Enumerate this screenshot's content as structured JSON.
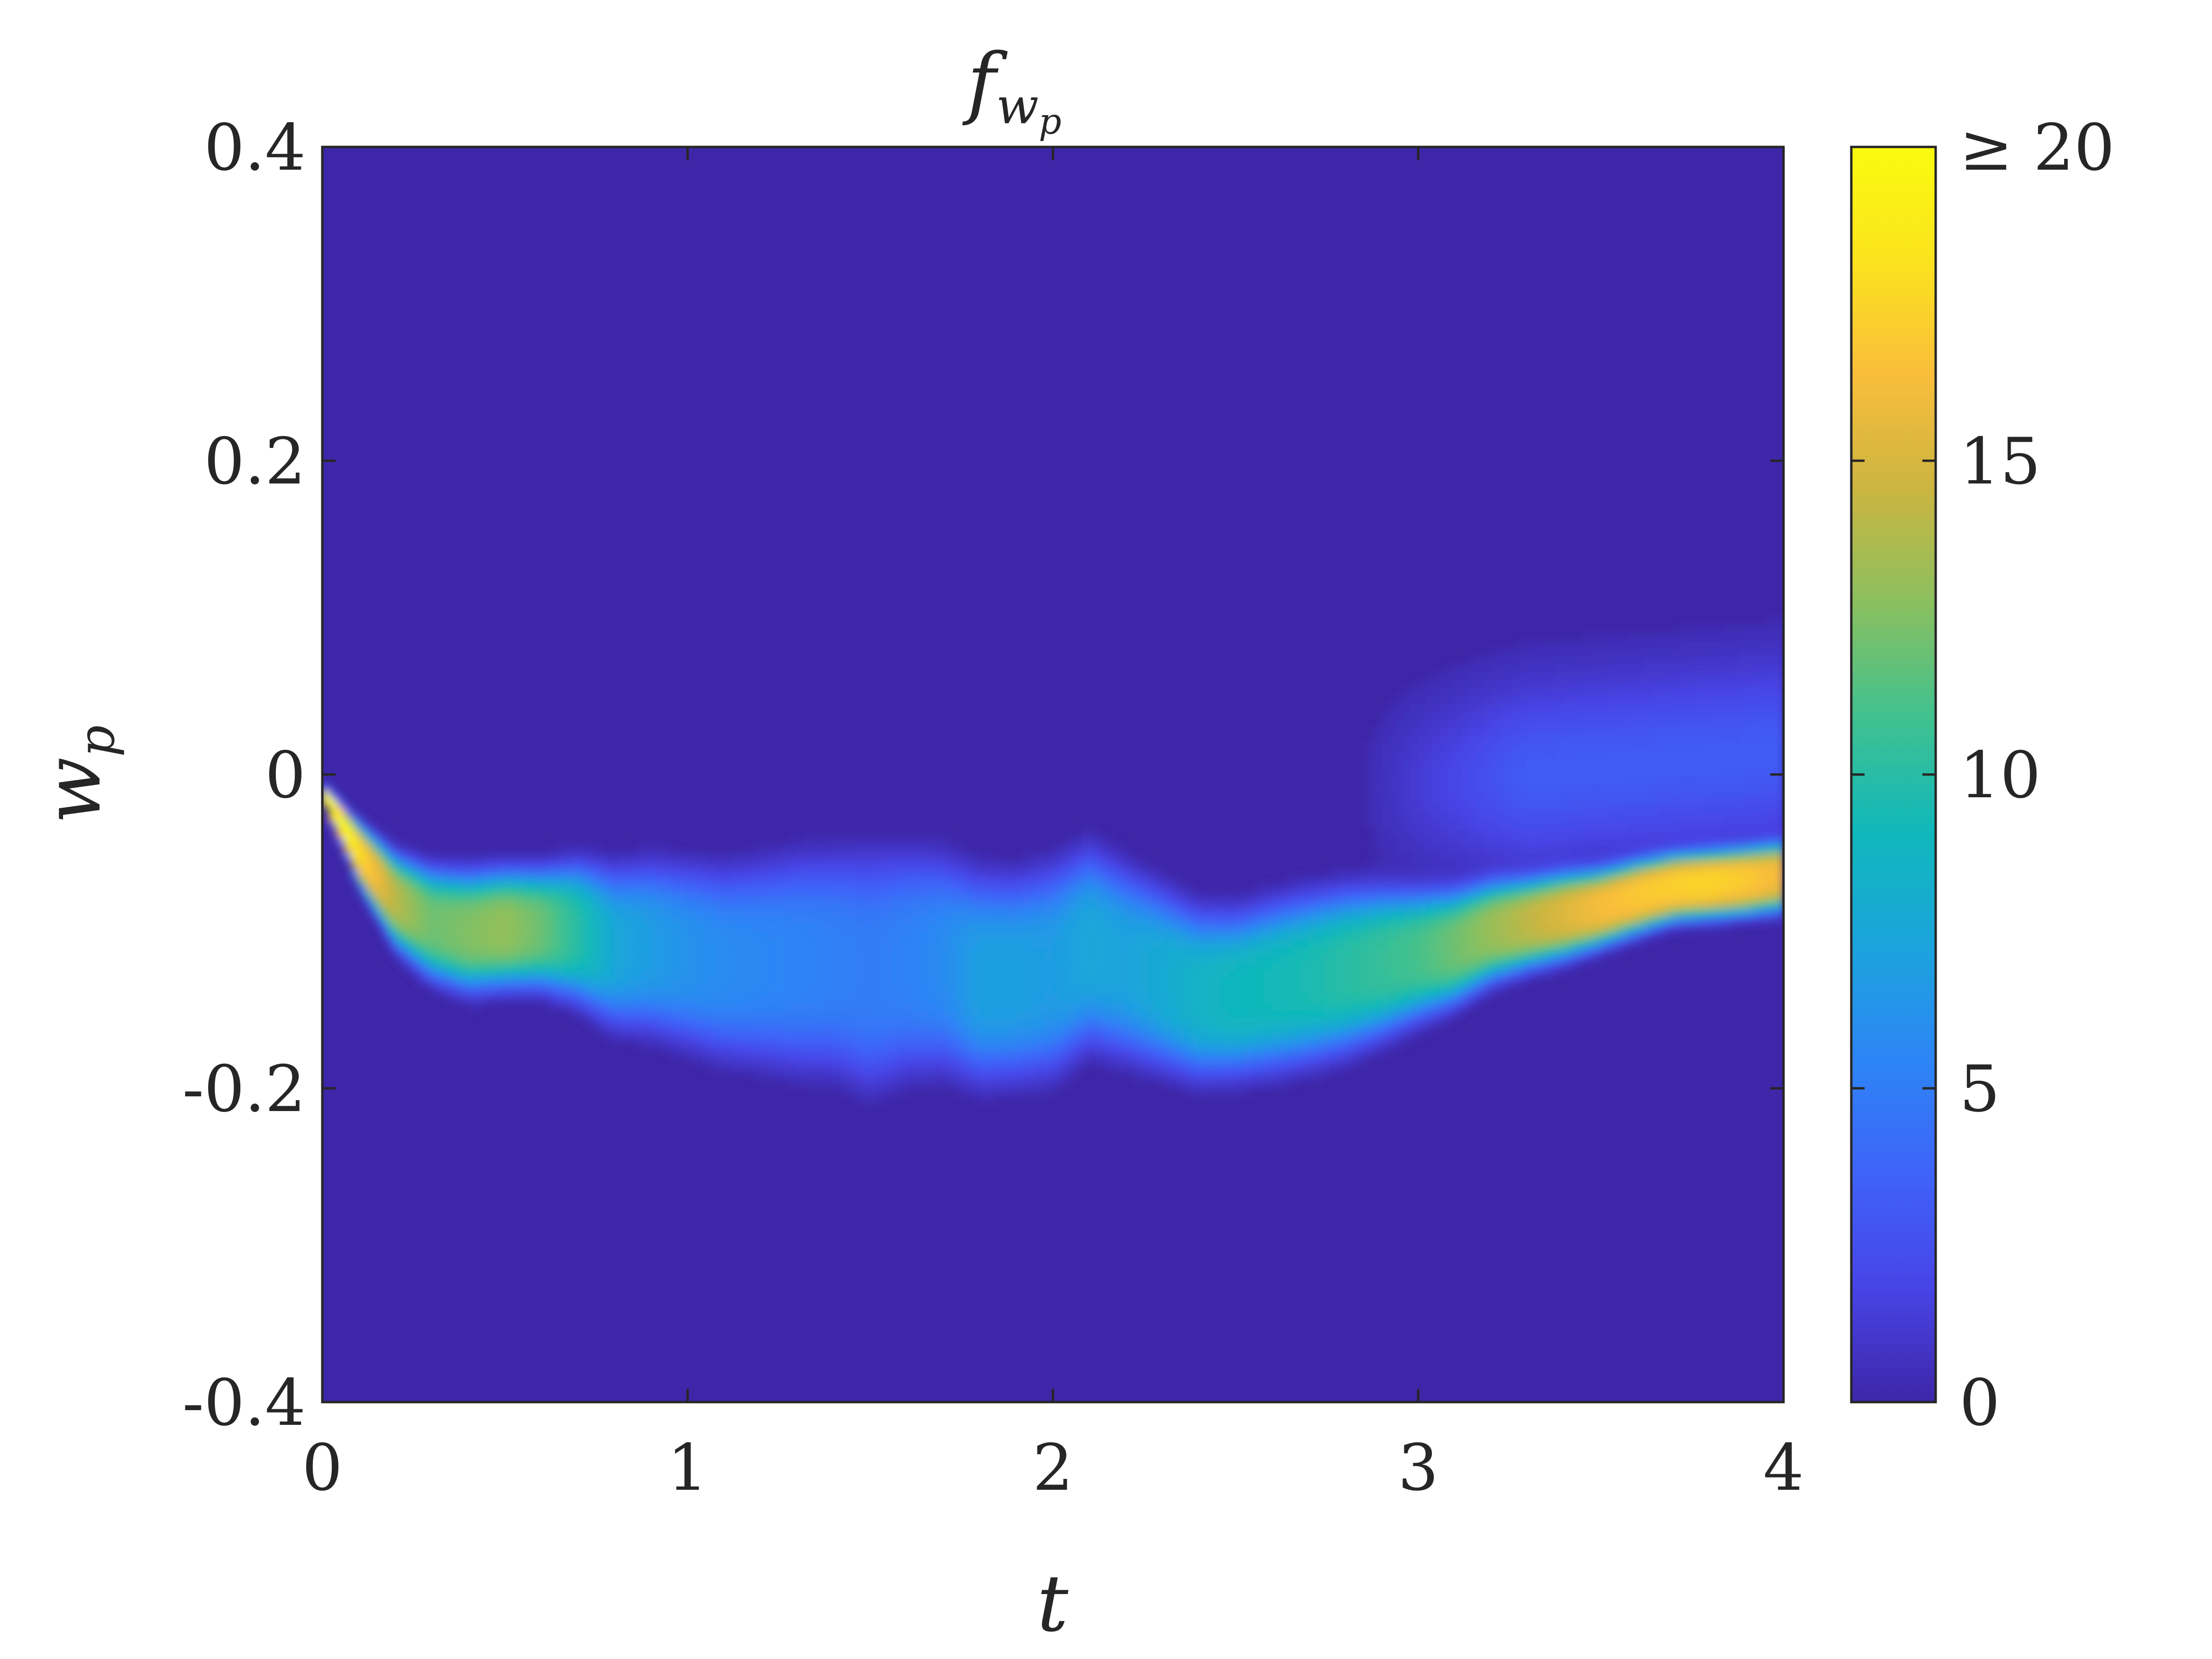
{
  "chart_data": {
    "type": "heatmap",
    "title": "f",
    "title_sub1": "w",
    "title_sub2": "p",
    "xlabel": "t",
    "ylabel": "w",
    "ylabel_sub": "p",
    "xlim": [
      0,
      4
    ],
    "ylim": [
      -0.4,
      0.4
    ],
    "xticks": [
      0,
      1,
      2,
      3,
      4
    ],
    "yticks": [
      -0.4,
      -0.2,
      0,
      0.2,
      0.4
    ],
    "xtick_labels": [
      "0",
      "1",
      "2",
      "3",
      "4"
    ],
    "ytick_labels": [
      "-0.4",
      "-0.2",
      "0",
      "0.2",
      "0.4"
    ],
    "grid": false,
    "colorbar": {
      "range": [
        0,
        20
      ],
      "ticks": [
        0,
        5,
        10,
        15,
        20
      ],
      "tick_labels": [
        "0",
        "5",
        "10",
        "15",
        "≥ 20"
      ],
      "colormap": "parula",
      "colors": [
        "#3e26a8",
        "#4744e6",
        "#3f63f9",
        "#2d85f5",
        "#1ba4dc",
        "#10b8bb",
        "#40c18f",
        "#8ac05f",
        "#cbb541",
        "#f9bd3b",
        "#fbe31e",
        "#f9fb0e"
      ]
    },
    "center_line": {
      "t": [
        0.0,
        0.1,
        0.2,
        0.3,
        0.4,
        0.5,
        0.6,
        0.7,
        0.8,
        0.9,
        1.0,
        1.1,
        1.2,
        1.3,
        1.4,
        1.5,
        1.6,
        1.7,
        1.8,
        1.9,
        2.0,
        2.1,
        2.2,
        2.3,
        2.4,
        2.5,
        2.6,
        2.7,
        2.8,
        2.9,
        3.0,
        3.1,
        3.2,
        3.3,
        3.4,
        3.5,
        3.6,
        3.7,
        3.8,
        3.9,
        4.0
      ],
      "w": [
        -0.01,
        -0.05,
        -0.08,
        -0.095,
        -0.1,
        -0.098,
        -0.098,
        -0.1,
        -0.11,
        -0.11,
        -0.115,
        -0.12,
        -0.12,
        -0.12,
        -0.12,
        -0.125,
        -0.12,
        -0.12,
        -0.13,
        -0.13,
        -0.125,
        -0.11,
        -0.12,
        -0.13,
        -0.14,
        -0.14,
        -0.135,
        -0.13,
        -0.125,
        -0.12,
        -0.115,
        -0.11,
        -0.1,
        -0.095,
        -0.09,
        -0.085,
        -0.078,
        -0.072,
        -0.07,
        -0.068,
        -0.065
      ]
    },
    "width_line": {
      "t": [
        0.0,
        0.1,
        0.2,
        0.3,
        0.4,
        0.5,
        0.6,
        0.7,
        0.8,
        0.9,
        1.0,
        1.1,
        1.2,
        1.3,
        1.4,
        1.5,
        1.6,
        1.7,
        1.8,
        1.9,
        2.0,
        2.1,
        2.2,
        2.3,
        2.4,
        2.5,
        2.6,
        2.7,
        2.8,
        2.9,
        3.0,
        3.1,
        3.2,
        3.3,
        3.4,
        3.5,
        3.6,
        3.7,
        3.8,
        3.9,
        4.0
      ],
      "w": [
        0.003,
        0.013,
        0.02,
        0.024,
        0.026,
        0.026,
        0.026,
        0.03,
        0.034,
        0.036,
        0.038,
        0.04,
        0.042,
        0.045,
        0.046,
        0.05,
        0.047,
        0.045,
        0.044,
        0.043,
        0.044,
        0.042,
        0.04,
        0.038,
        0.036,
        0.035,
        0.036,
        0.036,
        0.035,
        0.032,
        0.028,
        0.025,
        0.022,
        0.02,
        0.019,
        0.017,
        0.016,
        0.015,
        0.015,
        0.015,
        0.015
      ]
    },
    "peak_line": {
      "t": [
        0.0,
        0.1,
        0.2,
        0.3,
        0.4,
        0.5,
        0.6,
        0.7,
        0.8,
        0.9,
        1.0,
        1.1,
        1.2,
        1.3,
        1.4,
        1.5,
        1.6,
        1.7,
        1.8,
        1.9,
        2.0,
        2.1,
        2.2,
        2.3,
        2.4,
        2.5,
        2.6,
        2.7,
        2.8,
        2.9,
        3.0,
        3.1,
        3.2,
        3.3,
        3.4,
        3.5,
        3.6,
        3.7,
        3.8,
        3.9,
        4.0
      ],
      "f": [
        24,
        18,
        14,
        12,
        12.5,
        13,
        12,
        10,
        7.5,
        6.8,
        6.2,
        5.8,
        5.6,
        5.4,
        5.2,
        5,
        5.3,
        5.8,
        7,
        7,
        6.8,
        7.5,
        7.2,
        7.8,
        8.5,
        9,
        9.2,
        9.5,
        10,
        10.5,
        11,
        12,
        13,
        14,
        15,
        16,
        16.5,
        16.8,
        17,
        16.5,
        15.5
      ]
    }
  }
}
